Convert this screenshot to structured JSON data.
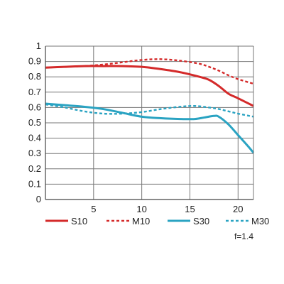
{
  "chart_data": {
    "type": "line",
    "title": "",
    "xlabel": "",
    "ylabel": "",
    "xlim": [
      0,
      21.6
    ],
    "ylim": [
      0,
      1
    ],
    "grid": true,
    "legend_placement": "bottom",
    "x_ticks": [
      5,
      10,
      15,
      20
    ],
    "y_ticks": [
      0,
      0.1,
      0.2,
      0.3,
      0.4,
      0.5,
      0.6,
      0.7,
      0.8,
      0.9,
      1
    ],
    "x_tick_labels": [
      "5",
      "10",
      "15",
      "20"
    ],
    "y_tick_labels": [
      "0",
      "0.1",
      "0.2",
      "0.3",
      "0.4",
      "0.5",
      "0.6",
      "0.7",
      "0.8",
      "0.9",
      "1"
    ],
    "annotation": "f=1.4",
    "series": [
      {
        "name": "S10",
        "color": "#d42a2a",
        "dash": "solid",
        "points": [
          [
            0,
            0.86
          ],
          [
            2,
            0.865
          ],
          [
            4,
            0.87
          ],
          [
            6,
            0.87
          ],
          [
            8,
            0.87
          ],
          [
            10,
            0.865
          ],
          [
            12,
            0.85
          ],
          [
            14,
            0.83
          ],
          [
            16,
            0.8
          ],
          [
            17,
            0.78
          ],
          [
            18,
            0.74
          ],
          [
            19,
            0.69
          ],
          [
            20,
            0.66
          ],
          [
            21.6,
            0.61
          ]
        ]
      },
      {
        "name": "M10",
        "color": "#d42a2a",
        "dash": "dashed",
        "points": [
          [
            0,
            0.86
          ],
          [
            2,
            0.865
          ],
          [
            4,
            0.87
          ],
          [
            6,
            0.88
          ],
          [
            8,
            0.895
          ],
          [
            10,
            0.91
          ],
          [
            12,
            0.915
          ],
          [
            14,
            0.905
          ],
          [
            16,
            0.885
          ],
          [
            17,
            0.865
          ],
          [
            18,
            0.84
          ],
          [
            19,
            0.81
          ],
          [
            20,
            0.785
          ],
          [
            21.6,
            0.755
          ]
        ]
      },
      {
        "name": "S30",
        "color": "#2aa3c2",
        "dash": "solid",
        "points": [
          [
            0,
            0.625
          ],
          [
            2,
            0.615
          ],
          [
            4,
            0.605
          ],
          [
            6,
            0.59
          ],
          [
            8,
            0.565
          ],
          [
            10,
            0.54
          ],
          [
            12,
            0.53
          ],
          [
            14,
            0.525
          ],
          [
            15.5,
            0.525
          ],
          [
            16.5,
            0.535
          ],
          [
            17.5,
            0.545
          ],
          [
            18,
            0.54
          ],
          [
            19,
            0.49
          ],
          [
            20,
            0.42
          ],
          [
            21,
            0.35
          ],
          [
            21.6,
            0.305
          ]
        ]
      },
      {
        "name": "M30",
        "color": "#2aa3c2",
        "dash": "dashed",
        "points": [
          [
            0,
            0.62
          ],
          [
            2,
            0.6
          ],
          [
            4,
            0.575
          ],
          [
            6,
            0.56
          ],
          [
            8,
            0.56
          ],
          [
            10,
            0.57
          ],
          [
            12,
            0.59
          ],
          [
            14,
            0.605
          ],
          [
            15.5,
            0.61
          ],
          [
            17,
            0.6
          ],
          [
            18,
            0.59
          ],
          [
            19,
            0.575
          ],
          [
            20,
            0.56
          ],
          [
            21.6,
            0.54
          ]
        ]
      }
    ]
  }
}
